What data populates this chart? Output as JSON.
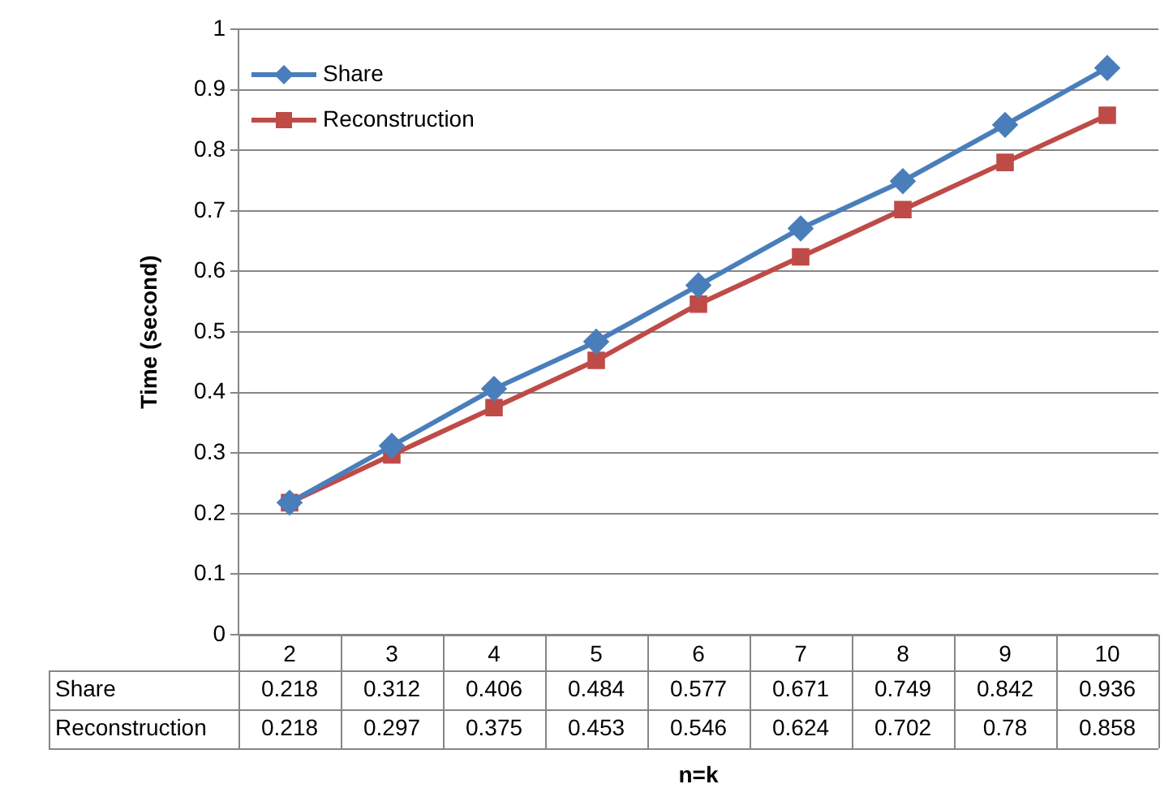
{
  "chart_data": {
    "type": "line",
    "xlabel": "n=k",
    "ylabel": "Time (second)",
    "categories": [
      "2",
      "3",
      "4",
      "5",
      "6",
      "7",
      "8",
      "9",
      "10"
    ],
    "series": [
      {
        "name": "Share",
        "color": "#4a7ebb",
        "marker": "diamond",
        "values": [
          0.218,
          0.312,
          0.406,
          0.484,
          0.577,
          0.671,
          0.749,
          0.842,
          0.936
        ]
      },
      {
        "name": "Reconstruction",
        "color": "#be4b48",
        "marker": "square",
        "values": [
          0.218,
          0.297,
          0.375,
          0.453,
          0.546,
          0.624,
          0.702,
          0.78,
          0.858
        ]
      }
    ],
    "ylim": [
      0,
      1
    ],
    "yticks": [
      0,
      0.1,
      0.2,
      0.3,
      0.4,
      0.5,
      0.6,
      0.7,
      0.8,
      0.9,
      1
    ],
    "grid": "y",
    "legend": "top left",
    "data_labels": true,
    "line_style": "solid"
  }
}
